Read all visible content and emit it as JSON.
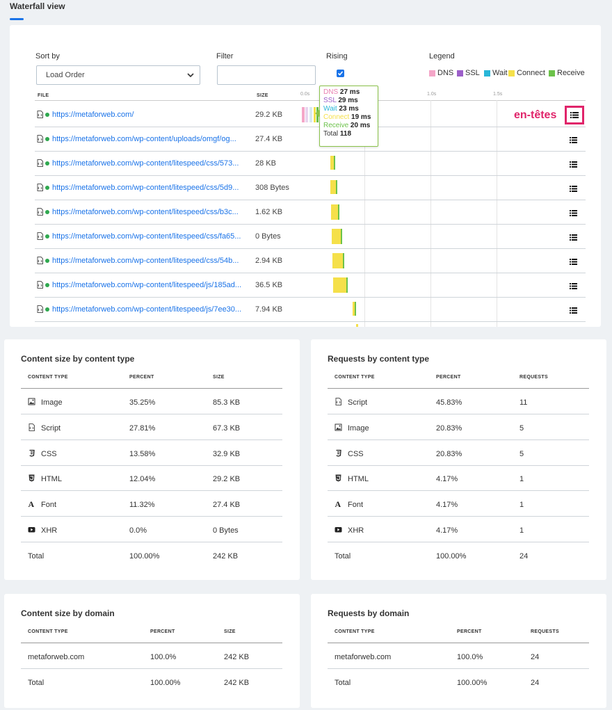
{
  "header": {
    "title": "Waterfall view"
  },
  "controls": {
    "sort_label": "Sort by",
    "sort_value": "Load Order",
    "filter_label": "Filter",
    "filter_value": "",
    "rising_label": "Rising",
    "rising_checked": true,
    "legend_label": "Legend",
    "legend": [
      {
        "label": "DNS",
        "color": "#f4a6c8"
      },
      {
        "label": "SSL",
        "color": "#9c5fc9"
      },
      {
        "label": "Wait",
        "color": "#29b6d8"
      },
      {
        "label": "Connect",
        "color": "#f5e04a"
      },
      {
        "label": "Receive",
        "color": "#6cc24a"
      }
    ]
  },
  "table": {
    "columns": [
      "FILE",
      "SIZE"
    ],
    "ticks": [
      "0.0s",
      "1.0s",
      "1.5s"
    ],
    "rows": [
      {
        "url": "https://metaforweb.com/",
        "size": "29.2 KB"
      },
      {
        "url": "https://metaforweb.com/wp-content/uploads/omgf/og...",
        "size": "27.4 KB"
      },
      {
        "url": "https://metaforweb.com/wp-content/litespeed/css/573...",
        "size": "28 KB"
      },
      {
        "url": "https://metaforweb.com/wp-content/litespeed/css/5d9...",
        "size": "308 Bytes"
      },
      {
        "url": "https://metaforweb.com/wp-content/litespeed/css/b3c...",
        "size": "1.62 KB"
      },
      {
        "url": "https://metaforweb.com/wp-content/litespeed/css/fa65...",
        "size": "0 Bytes"
      },
      {
        "url": "https://metaforweb.com/wp-content/litespeed/css/54b...",
        "size": "2.94 KB"
      },
      {
        "url": "https://metaforweb.com/wp-content/litespeed/js/185ad...",
        "size": "36.5 KB"
      },
      {
        "url": "https://metaforweb.com/wp-content/litespeed/js/7ee30...",
        "size": "7.94 KB"
      }
    ]
  },
  "tooltip": {
    "lines": [
      {
        "label": "DNS",
        "value": "27 ms",
        "color": "#e87fb0"
      },
      {
        "label": "SSL",
        "value": "29 ms",
        "color": "#9c5fc9"
      },
      {
        "label": "Wait",
        "value": "23 ms",
        "color": "#29b6d8"
      },
      {
        "label": "Connect",
        "value": "19 ms",
        "color": "#f5e04a"
      },
      {
        "label": "Receive",
        "value": "20 ms",
        "color": "#6cc24a"
      },
      {
        "label": "Total",
        "value": "118",
        "color": "#333333"
      }
    ]
  },
  "annotation": {
    "text": "en-têtes"
  },
  "content_size_type": {
    "title": "Content size by content type",
    "columns": [
      "CONTENT TYPE",
      "PERCENT",
      "SIZE"
    ],
    "rows": [
      {
        "icon": "image-icon",
        "type": "Image",
        "percent": "35.25%",
        "value": "85.3 KB"
      },
      {
        "icon": "script-icon",
        "type": "Script",
        "percent": "27.81%",
        "value": "67.3 KB"
      },
      {
        "icon": "css-icon",
        "type": "CSS",
        "percent": "13.58%",
        "value": "32.9 KB"
      },
      {
        "icon": "html-icon",
        "type": "HTML",
        "percent": "12.04%",
        "value": "29.2 KB"
      },
      {
        "icon": "font-icon",
        "type": "Font",
        "percent": "11.32%",
        "value": "27.4 KB"
      },
      {
        "icon": "xhr-icon",
        "type": "XHR",
        "percent": "0.0%",
        "value": "0 Bytes"
      }
    ],
    "total": {
      "type": "Total",
      "percent": "100.00%",
      "value": "242 KB"
    }
  },
  "requests_type": {
    "title": "Requests by content type",
    "columns": [
      "CONTENT TYPE",
      "PERCENT",
      "REQUESTS"
    ],
    "rows": [
      {
        "icon": "script-icon",
        "type": "Script",
        "percent": "45.83%",
        "value": "11"
      },
      {
        "icon": "image-icon",
        "type": "Image",
        "percent": "20.83%",
        "value": "5"
      },
      {
        "icon": "css-icon",
        "type": "CSS",
        "percent": "20.83%",
        "value": "5"
      },
      {
        "icon": "html-icon",
        "type": "HTML",
        "percent": "4.17%",
        "value": "1"
      },
      {
        "icon": "font-icon",
        "type": "Font",
        "percent": "4.17%",
        "value": "1"
      },
      {
        "icon": "xhr-icon",
        "type": "XHR",
        "percent": "4.17%",
        "value": "1"
      }
    ],
    "total": {
      "type": "Total",
      "percent": "100.00%",
      "value": "24"
    }
  },
  "content_size_domain": {
    "title": "Content size by domain",
    "columns": [
      "CONTENT TYPE",
      "PERCENT",
      "SIZE"
    ],
    "rows": [
      {
        "type": "metaforweb.com",
        "percent": "100.0%",
        "value": "242 KB"
      }
    ],
    "total": {
      "type": "Total",
      "percent": "100.00%",
      "value": "242 KB"
    }
  },
  "requests_domain": {
    "title": "Requests by domain",
    "columns": [
      "CONTENT TYPE",
      "PERCENT",
      "REQUESTS"
    ],
    "rows": [
      {
        "type": "metaforweb.com",
        "percent": "100.0%",
        "value": "24"
      }
    ],
    "total": {
      "type": "Total",
      "percent": "100.00%",
      "value": "24"
    }
  }
}
